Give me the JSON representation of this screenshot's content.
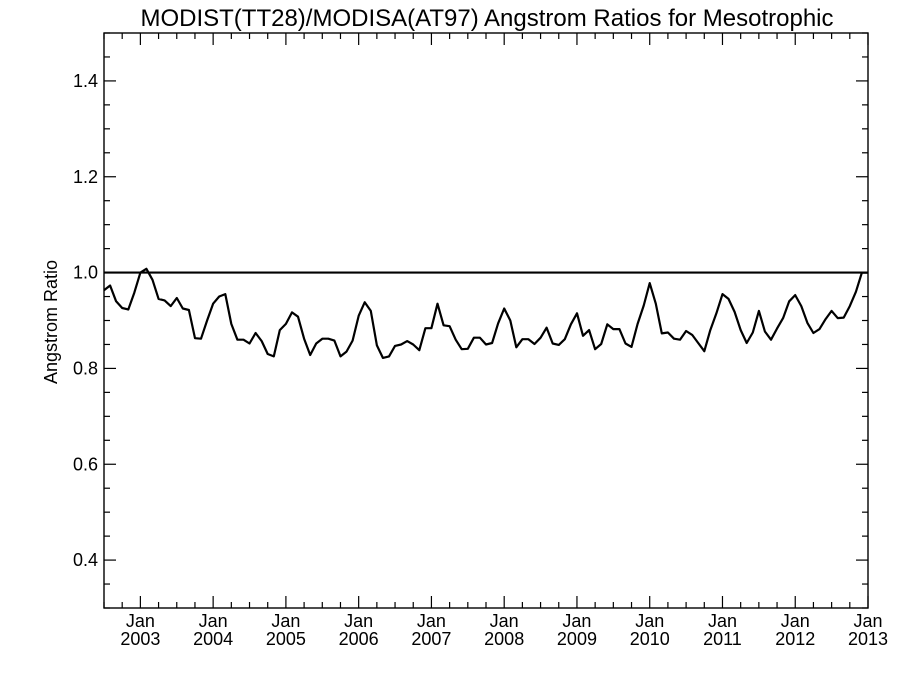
{
  "chart_data": {
    "type": "line",
    "title": "MODIST(TT28)/MODISA(AT97)  Angstrom Ratios for Mesotrophic",
    "xlabel": "",
    "ylabel": "Angstrom Ratio",
    "xlim": [
      "2002-07",
      "2013-01"
    ],
    "ylim": [
      0.3,
      1.5
    ],
    "y_ticks": [
      0.4,
      0.6,
      0.8,
      1.0,
      1.2,
      1.4
    ],
    "y_tick_labels": [
      "0.4",
      "0.6",
      "0.8",
      "1.0",
      "1.2",
      "1.4"
    ],
    "x_ticks": [
      {
        "month": "Jan",
        "year": "2003",
        "date": "2003-01"
      },
      {
        "month": "Jan",
        "year": "2004",
        "date": "2004-01"
      },
      {
        "month": "Jan",
        "year": "2005",
        "date": "2005-01"
      },
      {
        "month": "Jan",
        "year": "2006",
        "date": "2006-01"
      },
      {
        "month": "Jan",
        "year": "2007",
        "date": "2007-01"
      },
      {
        "month": "Jan",
        "year": "2008",
        "date": "2008-01"
      },
      {
        "month": "Jan",
        "year": "2009",
        "date": "2009-01"
      },
      {
        "month": "Jan",
        "year": "2010",
        "date": "2010-01"
      },
      {
        "month": "Jan",
        "year": "2011",
        "date": "2011-01"
      },
      {
        "month": "Jan",
        "year": "2012",
        "date": "2012-01"
      },
      {
        "month": "Jan",
        "year": "2013",
        "date": "2013-01"
      }
    ],
    "reference_line": {
      "y": 1.0
    },
    "grid": false,
    "series": [
      {
        "x": [
          "2002-07",
          "2002-08",
          "2002-09",
          "2002-10",
          "2002-11",
          "2002-12",
          "2003-01",
          "2003-02",
          "2003-03",
          "2003-04",
          "2003-05",
          "2003-06",
          "2003-07",
          "2003-08",
          "2003-09",
          "2003-10",
          "2003-11",
          "2003-12",
          "2004-01",
          "2004-02",
          "2004-03",
          "2004-04",
          "2004-05",
          "2004-06",
          "2004-07",
          "2004-08",
          "2004-09",
          "2004-10",
          "2004-11",
          "2004-12",
          "2005-01",
          "2005-02",
          "2005-03",
          "2005-04",
          "2005-05",
          "2005-06",
          "2005-07",
          "2005-08",
          "2005-09",
          "2005-10",
          "2005-11",
          "2005-12",
          "2006-01",
          "2006-02",
          "2006-03",
          "2006-04",
          "2006-05",
          "2006-06",
          "2006-07",
          "2006-08",
          "2006-09",
          "2006-10",
          "2006-11",
          "2006-12",
          "2007-01",
          "2007-02",
          "2007-03",
          "2007-04",
          "2007-05",
          "2007-06",
          "2007-07",
          "2007-08",
          "2007-09",
          "2007-10",
          "2007-11",
          "2007-12",
          "2008-01",
          "2008-02",
          "2008-03",
          "2008-04",
          "2008-05",
          "2008-06",
          "2008-07",
          "2008-08",
          "2008-09",
          "2008-10",
          "2008-11",
          "2008-12",
          "2009-01",
          "2009-02",
          "2009-03",
          "2009-04",
          "2009-05",
          "2009-06",
          "2009-07",
          "2009-08",
          "2009-09",
          "2009-10",
          "2009-11",
          "2009-12",
          "2010-01",
          "2010-02",
          "2010-03",
          "2010-04",
          "2010-05",
          "2010-06",
          "2010-07",
          "2010-08",
          "2010-09",
          "2010-10",
          "2010-11",
          "2010-12",
          "2011-01",
          "2011-02",
          "2011-03",
          "2011-04",
          "2011-05",
          "2011-06",
          "2011-07",
          "2011-08",
          "2011-09",
          "2011-10",
          "2011-11",
          "2011-12",
          "2012-01",
          "2012-02",
          "2012-03",
          "2012-04",
          "2012-05",
          "2012-06",
          "2012-07",
          "2012-08",
          "2012-09",
          "2012-10",
          "2012-11",
          "2012-12",
          "2013-01"
        ],
        "values": [
          0.963,
          0.973,
          0.94,
          0.926,
          0.923,
          0.958,
          1.0,
          1.008,
          0.985,
          0.945,
          0.942,
          0.93,
          0.947,
          0.925,
          0.922,
          0.863,
          0.862,
          0.9,
          0.935,
          0.95,
          0.955,
          0.893,
          0.86,
          0.86,
          0.852,
          0.874,
          0.857,
          0.83,
          0.825,
          0.88,
          0.893,
          0.917,
          0.908,
          0.862,
          0.828,
          0.852,
          0.862,
          0.862,
          0.858,
          0.825,
          0.835,
          0.858,
          0.91,
          0.938,
          0.92,
          0.848,
          0.822,
          0.825,
          0.847,
          0.85,
          0.857,
          0.85,
          0.838,
          0.884,
          0.884,
          0.935,
          0.89,
          0.888,
          0.86,
          0.84,
          0.841,
          0.864,
          0.864,
          0.85,
          0.853,
          0.894,
          0.925,
          0.9,
          0.844,
          0.861,
          0.861,
          0.851,
          0.864,
          0.885,
          0.852,
          0.849,
          0.861,
          0.892,
          0.915,
          0.868,
          0.88,
          0.84,
          0.851,
          0.892,
          0.882,
          0.882,
          0.852,
          0.845,
          0.893,
          0.931,
          0.978,
          0.935,
          0.873,
          0.875,
          0.862,
          0.86,
          0.878,
          0.87,
          0.853,
          0.836,
          0.88,
          0.915,
          0.955,
          0.945,
          0.918,
          0.88,
          0.853,
          0.875,
          0.92,
          0.877,
          0.86,
          0.883,
          0.905,
          0.94,
          0.953,
          0.93,
          0.895,
          0.874,
          0.882,
          0.903,
          0.92,
          0.905,
          0.906,
          0.93,
          0.96,
          1.0,
          1.0
        ]
      }
    ]
  }
}
